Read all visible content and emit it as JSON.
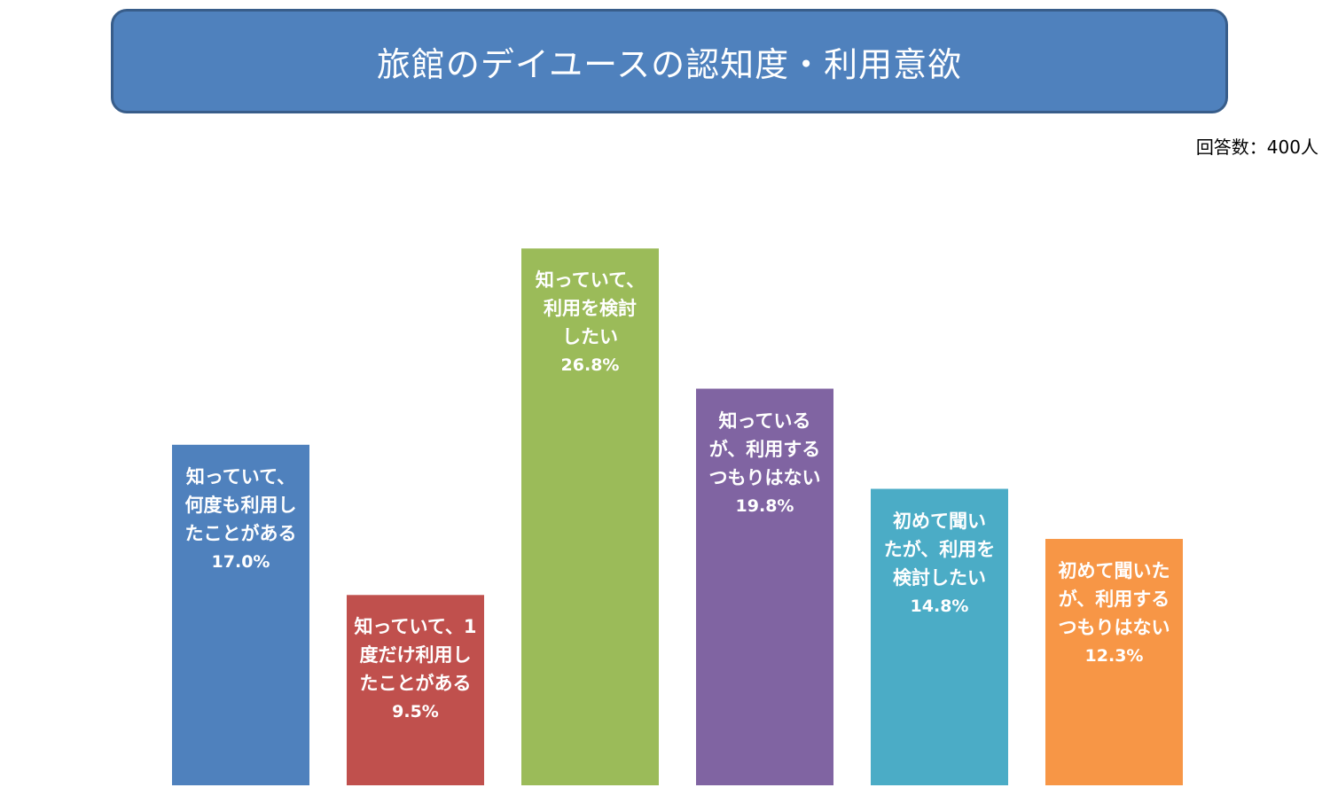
{
  "title": "旅館のデイユースの認知度・利用意欲",
  "respondents": "回答数：400人",
  "chart_data": {
    "type": "bar",
    "title": "旅館のデイユースの認知度・利用意欲",
    "categories": [
      "知っていて、何度も利用したことがある",
      "知っていて、1度だけ利用したことがある",
      "知っていて、利用を検討したい",
      "知っているが、利用するつもりはない",
      "初めて聞いたが、利用を検討したい",
      "初めて聞いたが、利用するつもりはない"
    ],
    "values": [
      17.0,
      9.5,
      26.8,
      19.8,
      14.8,
      12.3
    ],
    "value_labels": [
      "17.0%",
      "9.5%",
      "26.8%",
      "19.8%",
      "14.8%",
      "12.3%"
    ],
    "label_lines": [
      [
        "知っていて、",
        "何度も利用し",
        "たことがある"
      ],
      [
        "知っていて、1",
        "度だけ利用し",
        "たことがある"
      ],
      [
        "知っていて、",
        "利用を検討",
        "したい"
      ],
      [
        "知っている",
        "が、利用する",
        "つもりはない"
      ],
      [
        "初めて聞い",
        "たが、利用を",
        "検討したい"
      ],
      [
        "初めて聞いた",
        "が、利用する",
        "つもりはない"
      ]
    ],
    "colors": [
      "#4f81bd",
      "#c0504d",
      "#9bbb59",
      "#8064a2",
      "#4bacc6",
      "#f79646"
    ],
    "unit": "%",
    "ylim": [
      0,
      30
    ],
    "grid": false,
    "axes_visible": false
  }
}
